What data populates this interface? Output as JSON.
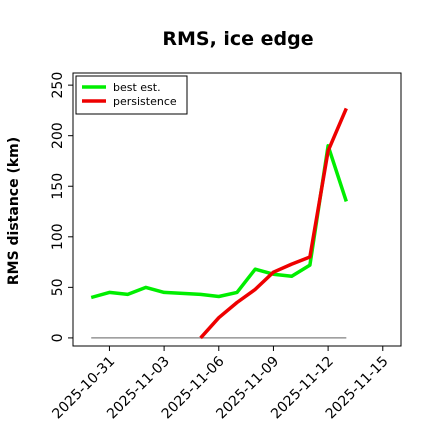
{
  "chart_data": {
    "type": "line",
    "title": "RMS, ice edge",
    "xlabel": "",
    "ylabel": "RMS distance (km)",
    "x": [
      "2025-10-30",
      "2025-10-31",
      "2025-11-01",
      "2025-11-02",
      "2025-11-03",
      "2025-11-04",
      "2025-11-05",
      "2025-11-06",
      "2025-11-07",
      "2025-11-08",
      "2025-11-09",
      "2025-11-10",
      "2025-11-11",
      "2025-11-12",
      "2025-11-13"
    ],
    "x_tick_labels": [
      "2025-10-31",
      "2025-11-03",
      "2025-11-06",
      "2025-11-09",
      "2025-11-12",
      "2025-11-15"
    ],
    "y_ticks": [
      0,
      50,
      100,
      150,
      200,
      250
    ],
    "ylim": [
      -8,
      262
    ],
    "xlim": [
      "2025-10-29",
      "2025-11-16"
    ],
    "series": [
      {
        "name": "best est.",
        "color": "#00ee00",
        "x": [
          "2025-10-30",
          "2025-10-31",
          "2025-11-01",
          "2025-11-02",
          "2025-11-03",
          "2025-11-04",
          "2025-11-05",
          "2025-11-06",
          "2025-11-07",
          "2025-11-08",
          "2025-11-09",
          "2025-11-10",
          "2025-11-11",
          "2025-11-12",
          "2025-11-13"
        ],
        "values": [
          40,
          45,
          43,
          50,
          45,
          44,
          43,
          41,
          45,
          68,
          63,
          61,
          72,
          190,
          135
        ]
      },
      {
        "name": "persistence",
        "color": "#ee0000",
        "x": [
          "2025-11-05",
          "2025-11-06",
          "2025-11-07",
          "2025-11-08",
          "2025-11-09",
          "2025-11-10",
          "2025-11-11",
          "2025-11-12",
          "2025-11-13"
        ],
        "values": [
          0,
          20,
          35,
          48,
          65,
          73,
          80,
          185,
          227
        ]
      }
    ],
    "reference_line": {
      "y": 0,
      "from": "2025-10-30",
      "to": "2025-11-13",
      "color": "#808080"
    },
    "legend_position": "top-left",
    "grid": false
  }
}
